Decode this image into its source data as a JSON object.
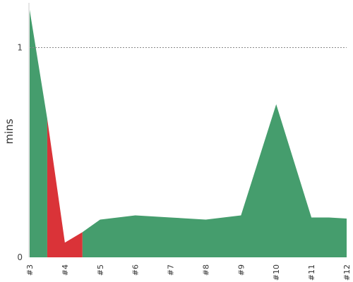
{
  "chart_data": {
    "type": "area",
    "ylabel": "mins",
    "xlabel": "",
    "ylim": [
      0,
      1.2
    ],
    "y_ticks": [
      0,
      1
    ],
    "x_ticks": [
      "#3",
      "#4",
      "#5",
      "#6",
      "#7",
      "#8",
      "#9",
      "#10",
      "#11",
      "#12"
    ],
    "reference_line": {
      "y": 1,
      "style": "dotted"
    },
    "points": [
      {
        "x": 3,
        "y": 1.18
      },
      {
        "x": 3.5,
        "y": 0.66
      },
      {
        "x": 4,
        "y": 0.07
      },
      {
        "x": 4.5,
        "y": 0.12
      },
      {
        "x": 5,
        "y": 0.18
      },
      {
        "x": 6,
        "y": 0.2
      },
      {
        "x": 7,
        "y": 0.19
      },
      {
        "x": 7.5,
        "y": 0.185
      },
      {
        "x": 8,
        "y": 0.18
      },
      {
        "x": 9,
        "y": 0.2
      },
      {
        "x": 10,
        "y": 0.73
      },
      {
        "x": 11,
        "y": 0.19
      },
      {
        "x": 11.5,
        "y": 0.19
      },
      {
        "x": 12,
        "y": 0.185
      }
    ],
    "segments": [
      {
        "status": "pass",
        "x_from": 3,
        "x_to": 3.5,
        "color": "#459d6d"
      },
      {
        "status": "fail",
        "x_from": 3.5,
        "x_to": 4.5,
        "color": "#da3338"
      },
      {
        "status": "pass",
        "x_from": 4.5,
        "x_to": 12,
        "color": "#459d6d"
      }
    ],
    "grid": false
  }
}
